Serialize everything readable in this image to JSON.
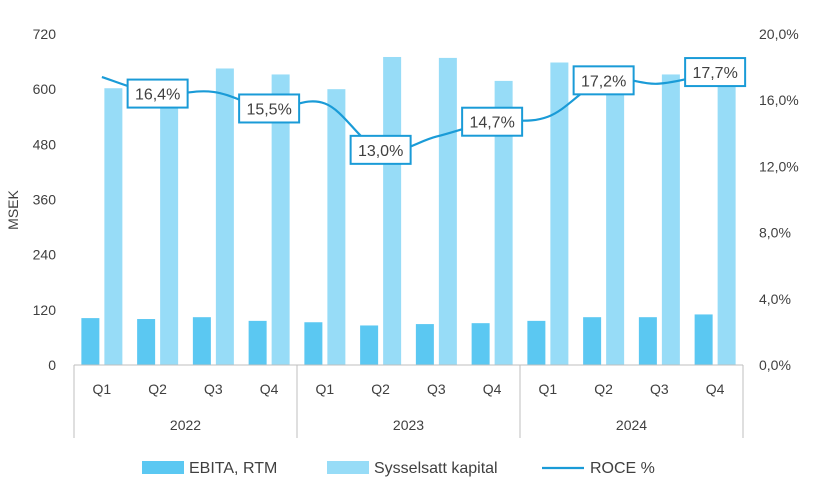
{
  "chart_data": {
    "type": "bar",
    "title": "",
    "ylabel": "MSEK",
    "y2label": "",
    "ylim": [
      0,
      720
    ],
    "yticks": [
      0,
      120,
      240,
      360,
      480,
      600,
      720
    ],
    "y2lim": [
      0,
      20
    ],
    "y2ticks": [
      "0,0%",
      "4,0%",
      "8,0%",
      "12,0%",
      "16,0%",
      "20,0%"
    ],
    "categories": [
      "Q1",
      "Q2",
      "Q3",
      "Q4",
      "Q1",
      "Q2",
      "Q3",
      "Q4",
      "Q1",
      "Q2",
      "Q3",
      "Q4"
    ],
    "groups": [
      {
        "label": "2022",
        "count": 4
      },
      {
        "label": "2023",
        "count": 4
      },
      {
        "label": "2024",
        "count": 4
      }
    ],
    "series": [
      {
        "name": "EBITA, RTM",
        "type": "bar",
        "axis": "left",
        "color": "#5bc8f2",
        "values": [
          102,
          100,
          104,
          96,
          93,
          86,
          89,
          91,
          96,
          104,
          104,
          110
        ]
      },
      {
        "name": "Sysselsatt kapital",
        "type": "bar",
        "axis": "left",
        "color": "#97dcf7",
        "values": [
          602,
          585,
          645,
          632,
          600,
          670,
          668,
          618,
          658,
          608,
          632,
          618
        ]
      },
      {
        "name": "ROCE %",
        "type": "line",
        "axis": "right",
        "color": "#1a9bd7",
        "values": [
          17.4,
          16.4,
          16.5,
          15.5,
          15.8,
          13.0,
          13.8,
          14.7,
          15.0,
          17.2,
          17.0,
          17.7
        ]
      }
    ],
    "data_labels": [
      {
        "index": 1,
        "text": "16,4%"
      },
      {
        "index": 3,
        "text": "15,5%"
      },
      {
        "index": 5,
        "text": "13,0%"
      },
      {
        "index": 7,
        "text": "14,7%"
      },
      {
        "index": 9,
        "text": "17,2%"
      },
      {
        "index": 11,
        "text": "17,7%"
      }
    ],
    "legend": [
      "EBITA, RTM",
      "Sysselsatt kapital",
      "ROCE %"
    ],
    "legend_position": "bottom",
    "grid": false
  }
}
